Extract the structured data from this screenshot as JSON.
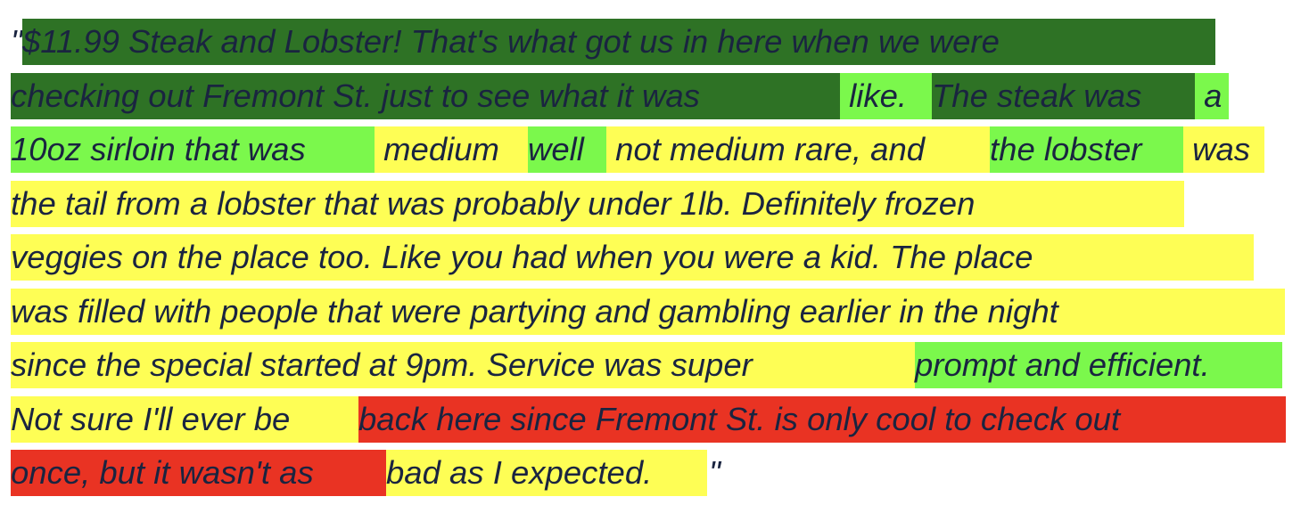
{
  "colors": {
    "dark_green": "#2e7225",
    "light_green": "#7bf84c",
    "yellow": "#fefe55",
    "red": "#e93323"
  },
  "open_quote": "\"",
  "close_quote": "\"",
  "lines": [
    [
      {
        "text": "$11.99 Steak and Lobster! That's what got us in here when we were",
        "color": "dark_green"
      }
    ],
    [
      {
        "text": "checking out Fremont St. just to see what it was",
        "color": "dark_green"
      },
      {
        "text": " like. ",
        "color": "light_green"
      },
      {
        "text": "The steak was",
        "color": "dark_green"
      },
      {
        "text": " a",
        "color": "light_green"
      }
    ],
    [
      {
        "text": "10oz sirloin that was",
        "color": "light_green"
      },
      {
        "text": " medium ",
        "color": "yellow"
      },
      {
        "text": "well",
        "color": "light_green"
      },
      {
        "text": " not medium rare, and ",
        "color": "yellow"
      },
      {
        "text": "the lobster",
        "color": "light_green"
      },
      {
        "text": " was",
        "color": "yellow"
      }
    ],
    [
      {
        "text": "the tail from a lobster that was probably under 1lb. Definitely frozen",
        "color": "yellow"
      }
    ],
    [
      {
        "text": "veggies on the place too. Like you had when you were a kid. The place",
        "color": "yellow"
      }
    ],
    [
      {
        "text": "was filled with people that were partying and gambling earlier in the night",
        "color": "yellow"
      }
    ],
    [
      {
        "text": "since the special started at 9pm. Service was super ",
        "color": "yellow"
      },
      {
        "text": "prompt and efficient.",
        "color": "light_green"
      }
    ],
    [
      {
        "text": "Not sure I'll ever be ",
        "color": "yellow"
      },
      {
        "text": "back here since Fremont St. is only cool to check out",
        "color": "red"
      }
    ],
    [
      {
        "text": "once, but it wasn't as ",
        "color": "red"
      },
      {
        "text": "bad as I expected.",
        "color": "yellow"
      }
    ]
  ]
}
